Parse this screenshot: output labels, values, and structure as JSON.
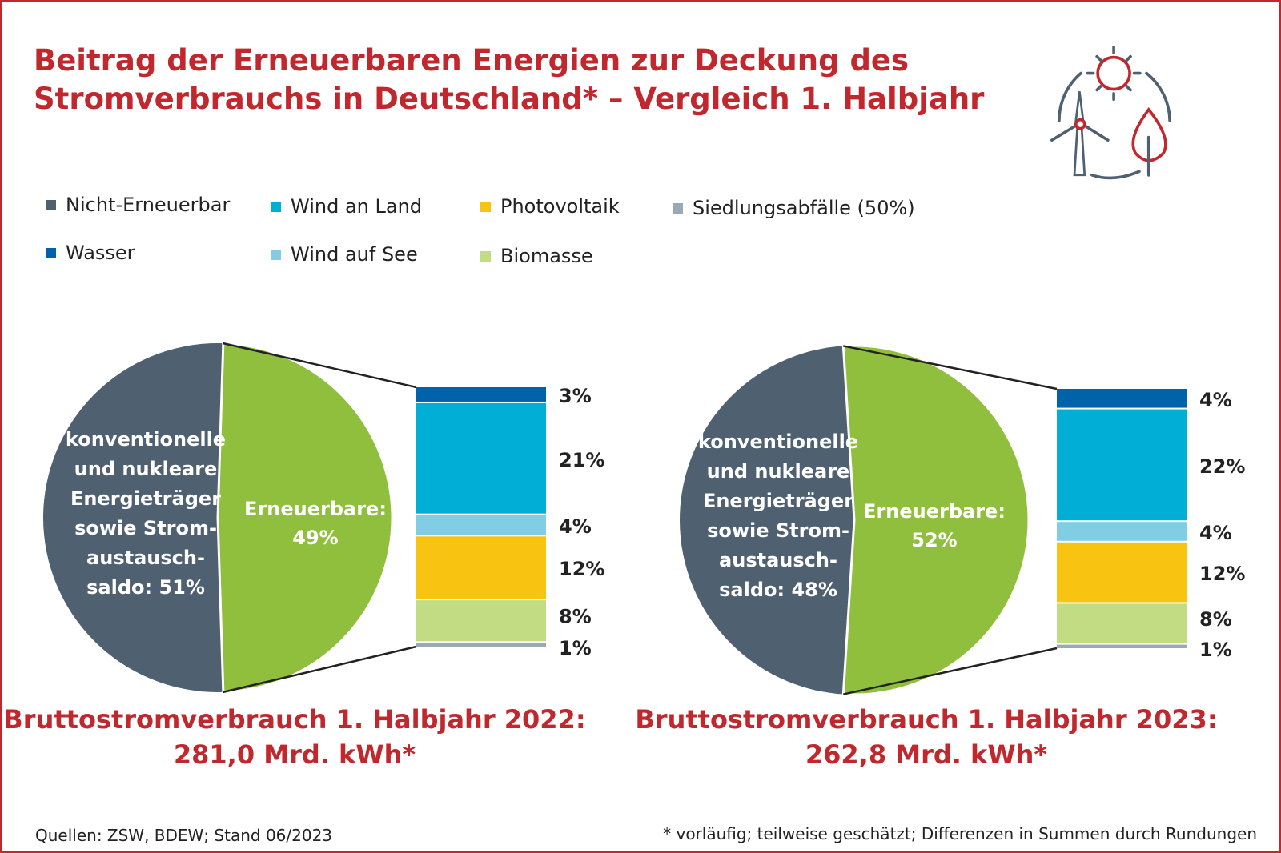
{
  "title": "Beitrag der Erneuerbaren Energien zur Deckung des Stromverbrauchs in Deutschland* – Vergleich 1. Halbjahr",
  "icon": "renewables-icon (wind turbine, sun, leaf)",
  "legend": [
    {
      "label": "Nicht-Erneuerbar",
      "color": "#4f6070"
    },
    {
      "label": "Wind an Land",
      "color": "#00aed6"
    },
    {
      "label": "Photovoltaik",
      "color": "#f8c411"
    },
    {
      "label": "Siedlungsabfälle (50%)",
      "color": "#9aa9b5"
    },
    {
      "label": "Wasser",
      "color": "#0062a8"
    },
    {
      "label": "Wind auf See",
      "color": "#80cde4"
    },
    {
      "label": "Biomasse",
      "color": "#c2dc84"
    }
  ],
  "chart_data": [
    {
      "type": "pie",
      "year": "2022",
      "slices": [
        {
          "name": "konventionelle und nukleare Energieträger sowie Stromaustauschsaldo",
          "value": 51,
          "color": "#4f6070"
        },
        {
          "name": "Erneuerbare",
          "value": 49,
          "color": "#8fbf3d"
        }
      ],
      "pie_labels": {
        "conventional": [
          "konventionelle",
          "und nukleare",
          "Energieträger",
          "sowie Strom-",
          "austausch-",
          "saldo: 51%"
        ],
        "renewable": [
          "Erneuerbare:",
          "49%"
        ]
      },
      "breakdown": {
        "type": "stacked-bar",
        "categories": [
          "Wasser",
          "Wind an Land",
          "Wind auf See",
          "Photovoltaik",
          "Biomasse",
          "Siedlungsabfälle (50%)"
        ],
        "values": [
          3,
          21,
          4,
          12,
          8,
          1
        ],
        "labels": [
          "3%",
          "21%",
          "4%",
          "12%",
          "8%",
          "1%"
        ]
      },
      "caption": [
        "Bruttostromverbrauch 1. Halbjahr 2022:",
        "281,0 Mrd. kWh*"
      ]
    },
    {
      "type": "pie",
      "year": "2023",
      "slices": [
        {
          "name": "konventionelle und nukleare Energieträger sowie Stromaustauschsaldo",
          "value": 48,
          "color": "#4f6070"
        },
        {
          "name": "Erneuerbare",
          "value": 52,
          "color": "#8fbf3d"
        }
      ],
      "pie_labels": {
        "conventional": [
          "konventionelle",
          "und nukleare",
          "Energieträger",
          "sowie Strom-",
          "austausch-",
          "saldo: 48%"
        ],
        "renewable": [
          "Erneuerbare:",
          "52%"
        ]
      },
      "breakdown": {
        "type": "stacked-bar",
        "categories": [
          "Wasser",
          "Wind an Land",
          "Wind auf See",
          "Photovoltaik",
          "Biomasse",
          "Siedlungsabfälle (50%)"
        ],
        "values": [
          4,
          22,
          4,
          12,
          8,
          1
        ],
        "labels": [
          "4%",
          "22%",
          "4%",
          "12%",
          "8%",
          "1%"
        ]
      },
      "caption": [
        "Bruttostromverbrauch 1. Halbjahr 2023:",
        "262,8 Mrd. kWh*"
      ]
    }
  ],
  "footer": {
    "sources": "Quellen: ZSW, BDEW; Stand 06/2023",
    "note": "* vorläufig; teilweise geschätzt; Differenzen in Summen durch Rundungen"
  }
}
